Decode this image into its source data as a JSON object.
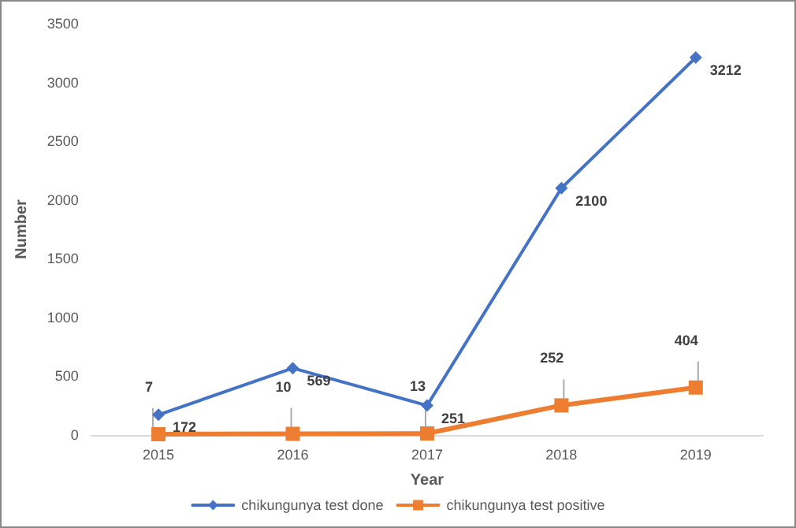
{
  "chart_data": {
    "type": "line",
    "xlabel": "Year",
    "ylabel": "Number",
    "categories": [
      "2015",
      "2016",
      "2017",
      "2018",
      "2019"
    ],
    "series": [
      {
        "name": "chikungunya test done",
        "color": "#4472c4",
        "marker": "diamond",
        "values": [
          172,
          569,
          251,
          2100,
          3212
        ]
      },
      {
        "name": "chikungunya test positive",
        "color": "#ed7d31",
        "marker": "square",
        "values": [
          7,
          10,
          13,
          252,
          404
        ]
      }
    ],
    "ylim": [
      0,
      3500
    ],
    "yticks": [
      0,
      500,
      1000,
      1500,
      2000,
      2500,
      3000,
      3500
    ],
    "grid": false,
    "legend": "bottom",
    "data_labels": true,
    "line_style": "solid"
  }
}
